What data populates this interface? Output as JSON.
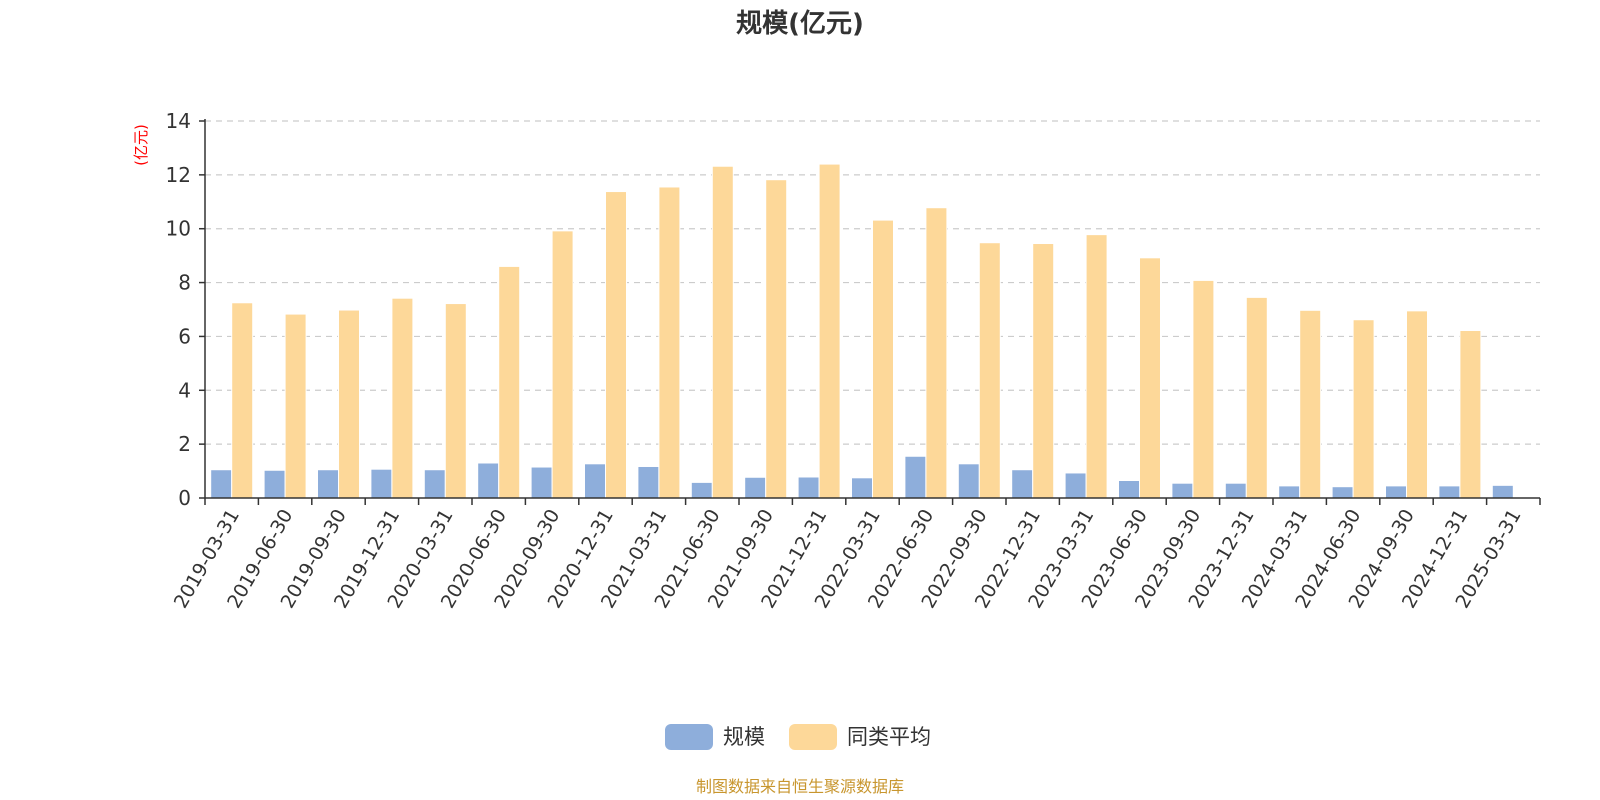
{
  "chart_data": {
    "type": "bar",
    "title": "规模(亿元)",
    "ylabel": "(亿元)",
    "xlabel": "",
    "ylim": [
      0,
      14
    ],
    "yticks": [
      0,
      2,
      4,
      6,
      8,
      10,
      12,
      14
    ],
    "grid": "horizontal dashed",
    "legend_position": "bottom-center",
    "categories": [
      "2019-03-31",
      "2019-06-30",
      "2019-09-30",
      "2019-12-31",
      "2020-03-31",
      "2020-06-30",
      "2020-09-30",
      "2020-12-31",
      "2021-03-31",
      "2021-06-30",
      "2021-09-30",
      "2021-12-31",
      "2022-03-31",
      "2022-06-30",
      "2022-09-30",
      "2022-12-31",
      "2023-03-31",
      "2023-06-30",
      "2023-09-30",
      "2023-12-31",
      "2024-03-31",
      "2024-06-30",
      "2024-09-30",
      "2024-12-31",
      "2025-03-31"
    ],
    "series": [
      {
        "name": "规模",
        "color": "#8eaedb",
        "values": [
          1.05,
          1.03,
          1.05,
          1.07,
          1.05,
          1.3,
          1.15,
          1.27,
          1.17,
          0.58,
          0.77,
          0.78,
          0.75,
          1.55,
          1.27,
          1.05,
          0.93,
          0.65,
          0.55,
          0.55,
          0.45,
          0.42,
          0.45,
          0.45,
          0.47
        ]
      },
      {
        "name": "同类平均",
        "color": "#fdd899",
        "values": [
          7.25,
          6.83,
          6.98,
          7.42,
          7.22,
          8.6,
          9.92,
          11.38,
          11.55,
          12.32,
          11.82,
          12.4,
          10.32,
          10.78,
          9.48,
          9.45,
          9.78,
          8.92,
          8.08,
          7.45,
          6.97,
          6.62,
          6.95,
          6.22,
          null
        ]
      }
    ]
  },
  "source_note": "制图数据来自恒生聚源数据库"
}
